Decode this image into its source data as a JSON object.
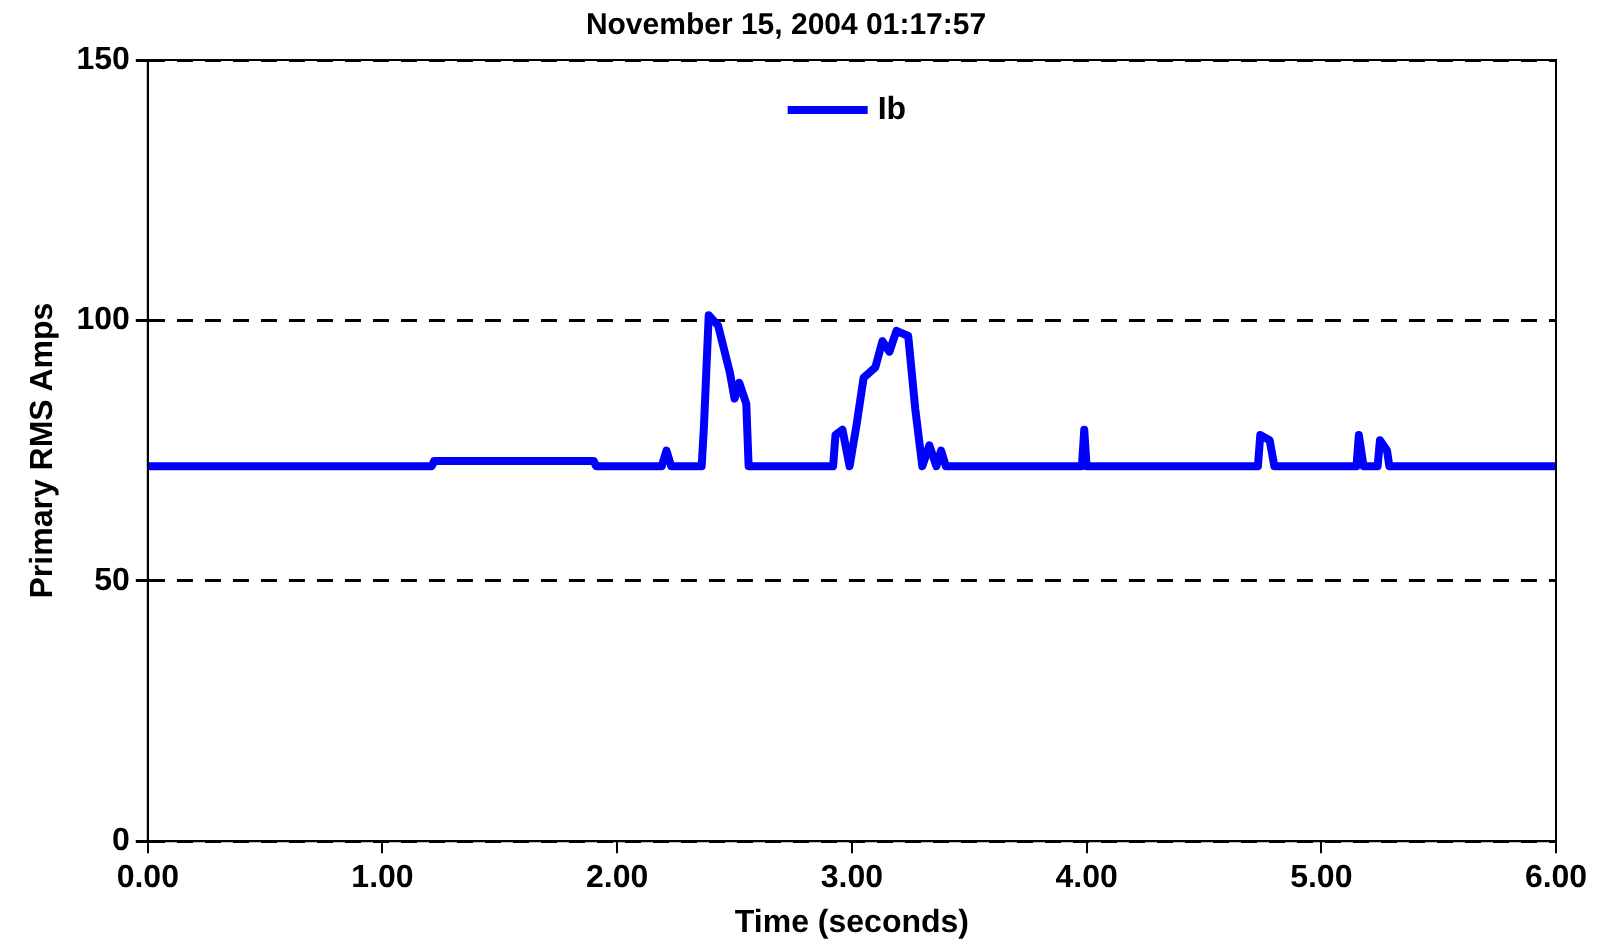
{
  "chart_data": {
    "type": "line",
    "title": "November 15, 2004 01:17:57",
    "xlabel": "Time (seconds)",
    "ylabel": "Primary RMS Amps",
    "xlim": [
      0,
      6
    ],
    "xticks": [
      {
        "value": 0,
        "label": "0.00"
      },
      {
        "value": 1,
        "label": "1.00"
      },
      {
        "value": 2,
        "label": "2.00"
      },
      {
        "value": 3,
        "label": "3.00"
      },
      {
        "value": 4,
        "label": "4.00"
      },
      {
        "value": 5,
        "label": "5.00"
      },
      {
        "value": 6,
        "label": "6.00"
      }
    ],
    "ylim": [
      0,
      150
    ],
    "yticks": [
      0,
      50,
      100,
      150
    ],
    "grid": "y",
    "legend": "top",
    "marker": "none",
    "line_style": "solid",
    "series": [
      {
        "name": "Ib",
        "color": "#0000ff",
        "x": [
          0,
          1.21,
          1.22,
          1.9,
          1.91,
          2.19,
          2.21,
          2.23,
          2.36,
          2.37,
          2.39,
          2.43,
          2.48,
          2.5,
          2.52,
          2.55,
          2.56,
          2.92,
          2.93,
          2.96,
          2.99,
          3.02,
          3.05,
          3.1,
          3.13,
          3.16,
          3.19,
          3.24,
          3.27,
          3.3,
          3.33,
          3.36,
          3.38,
          3.4,
          3.98,
          3.99,
          4.0,
          4.73,
          4.74,
          4.78,
          4.8,
          5.15,
          5.16,
          5.18,
          5.24,
          5.25,
          5.28,
          5.29,
          6
        ],
        "values": [
          72,
          72,
          73,
          73,
          72,
          72,
          75,
          72,
          72,
          80,
          101,
          99,
          90,
          85,
          88,
          84,
          72,
          72,
          78,
          79,
          72,
          80,
          89,
          91,
          96,
          94,
          98,
          97,
          83,
          72,
          76,
          72,
          75,
          72,
          72,
          79,
          72,
          72,
          78,
          77,
          72,
          72,
          78,
          72,
          72,
          77,
          75,
          72,
          72
        ]
      }
    ]
  }
}
